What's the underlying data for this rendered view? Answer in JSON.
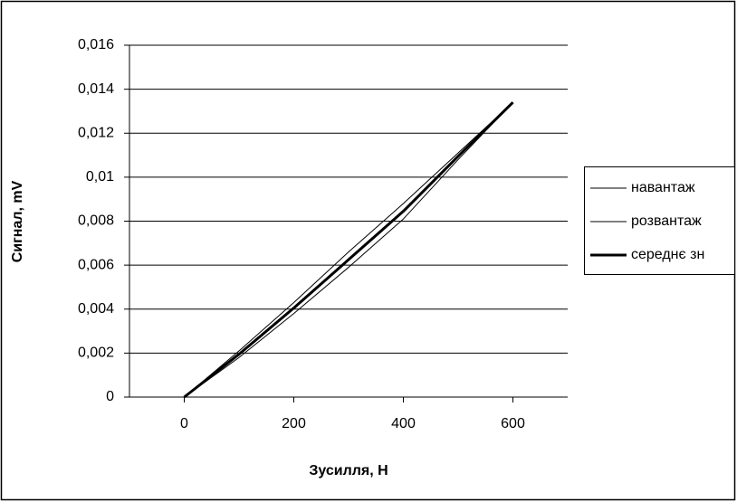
{
  "chart_data": {
    "type": "line",
    "x_label": "Зусилля, Н",
    "y_label": "Сигнал, mV",
    "x": [
      0,
      100,
      200,
      300,
      400,
      500,
      600
    ],
    "series": [
      {
        "name": "навантаж",
        "color": "#000000",
        "width": 1,
        "values": [
          0,
          0.0021,
          0.0043,
          0.0066,
          0.0088,
          0.0111,
          0.0134
        ]
      },
      {
        "name": "розвантаж",
        "color": "#000000",
        "width": 1,
        "values": [
          0,
          0.0018,
          0.0038,
          0.0059,
          0.0081,
          0.0108,
          0.0134
        ]
      },
      {
        "name": "середнє зн",
        "color": "#000000",
        "width": 3,
        "values": [
          0,
          0.00195,
          0.00405,
          0.00625,
          0.00845,
          0.01095,
          0.0134
        ]
      }
    ],
    "xlim": [
      -100,
      700
    ],
    "xticks": [
      0,
      200,
      400,
      600
    ],
    "ylim": [
      0,
      0.016
    ],
    "yticks": [
      0,
      {
        "value": 0.002,
        "label": "0,002"
      },
      {
        "value": 0.004,
        "label": "0,004"
      },
      {
        "value": 0.006,
        "label": "0,006"
      },
      {
        "value": 0.008,
        "label": "0,008"
      },
      {
        "value": 0.01,
        "label": "0,01"
      },
      {
        "value": 0.012,
        "label": "0,012"
      },
      {
        "value": 0.014,
        "label": "0,014"
      },
      {
        "value": 0.016,
        "label": "0,016"
      }
    ],
    "grid": true,
    "legend": "right"
  }
}
